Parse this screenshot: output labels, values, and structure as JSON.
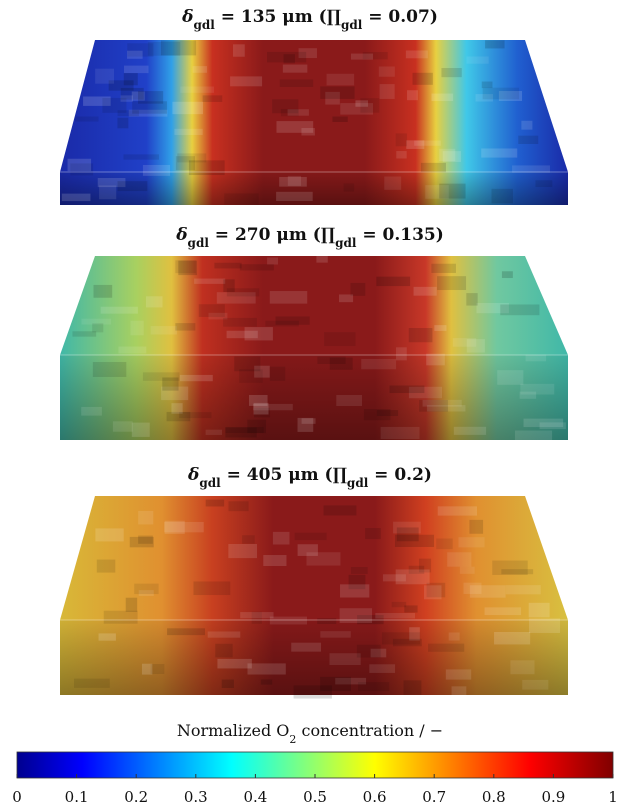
{
  "panels": [
    {
      "title": [
        "δ",
        "gdl",
        " = 135 μm (∏",
        "gdl",
        " = 0.07)"
      ]
    },
    {
      "title": [
        "δ",
        "gdl",
        " = 270 μm (∏",
        "gdl",
        " = 0.135)"
      ]
    },
    {
      "title": [
        "δ",
        "gdl",
        " = 405 μm (∏",
        "gdl",
        " = 0.2)"
      ]
    }
  ],
  "colorbar": {
    "label": [
      "Normalized O",
      "2",
      " concentration / −"
    ],
    "lim": [
      0,
      1
    ],
    "ticks": [
      0,
      0.1,
      0.2,
      0.3,
      0.4,
      0.5,
      0.6,
      0.7,
      0.8,
      0.9,
      1
    ]
  }
}
